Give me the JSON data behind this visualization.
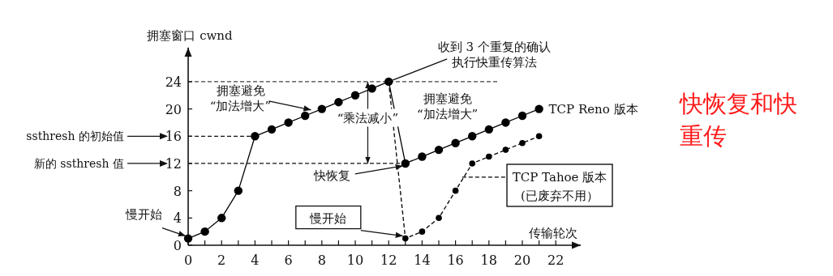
{
  "chart_data": {
    "type": "line",
    "title": "快恢复和快重传",
    "xlabel": "传输轮次",
    "ylabel": "拥塞窗口 cwnd",
    "xlim": [
      0,
      23.5
    ],
    "ylim": [
      0,
      29
    ],
    "xticks": [
      0,
      {
        "value": 1,
        "label": null
      },
      2,
      {
        "value": 3,
        "label": null
      },
      4,
      {
        "value": 5,
        "label": null
      },
      6,
      {
        "value": 7,
        "label": null
      },
      8,
      {
        "value": 9,
        "label": null
      },
      10,
      {
        "value": 11,
        "label": null
      },
      12,
      {
        "value": 13,
        "label": null
      },
      14,
      {
        "value": 15,
        "label": null
      },
      16,
      {
        "value": 17,
        "label": null
      },
      18,
      {
        "value": 19,
        "label": null
      },
      20,
      {
        "value": 21,
        "label": null
      },
      22
    ],
    "yticks": [
      0,
      4,
      8,
      12,
      16,
      20,
      24
    ],
    "marker": "circle",
    "grid": false,
    "series": [
      {
        "name": "TCP Reno 版本",
        "color": "#000000",
        "line_style": "solid",
        "x": [
          0,
          1,
          2,
          3,
          4,
          5,
          6,
          7,
          8,
          9,
          10,
          11,
          12,
          13,
          14,
          15,
          16,
          17,
          18,
          19,
          20,
          21
        ],
        "values": [
          1,
          2,
          4,
          8,
          16,
          17,
          18,
          19,
          20,
          21,
          22,
          23,
          24,
          12,
          13,
          14,
          15,
          16,
          17,
          18,
          19,
          20
        ]
      },
      {
        "name": "TCP Tahoe 版本",
        "color": "#000000",
        "line_style": "dashed",
        "x": [
          12,
          13,
          14,
          15,
          16,
          17,
          18,
          19,
          20,
          21
        ],
        "values": [
          24,
          1,
          2,
          4,
          8,
          12,
          13,
          14,
          15,
          16
        ]
      }
    ],
    "ref_lines": [
      {
        "axis": "y",
        "value": 24,
        "label": null,
        "line_style": "dashed"
      },
      {
        "axis": "y",
        "value": 16,
        "label": "ssthresh 的初始值",
        "line_style": "dashed"
      },
      {
        "axis": "y",
        "value": 12,
        "label": "新的 ssthresh 值",
        "line_style": "dashed"
      }
    ],
    "annotations": [
      {
        "text": "收到 3 个重复的确认执行快重传算法",
        "x": 12,
        "y": 24
      },
      {
        "text": "拥塞避免“加法增大”",
        "x": 7.5,
        "y": 19.5
      },
      {
        "text": "快恢复",
        "x": 13,
        "y": 12
      },
      {
        "text": "慢开始",
        "x": 0,
        "y": 1
      },
      {
        "text": "慢开始",
        "x": 13,
        "y": 1
      },
      {
        "text": "拥塞避免“加法增大”",
        "x": 16,
        "y": 15
      },
      "(已废弃不用）",
      "“乘法减小”"
    ]
  }
}
